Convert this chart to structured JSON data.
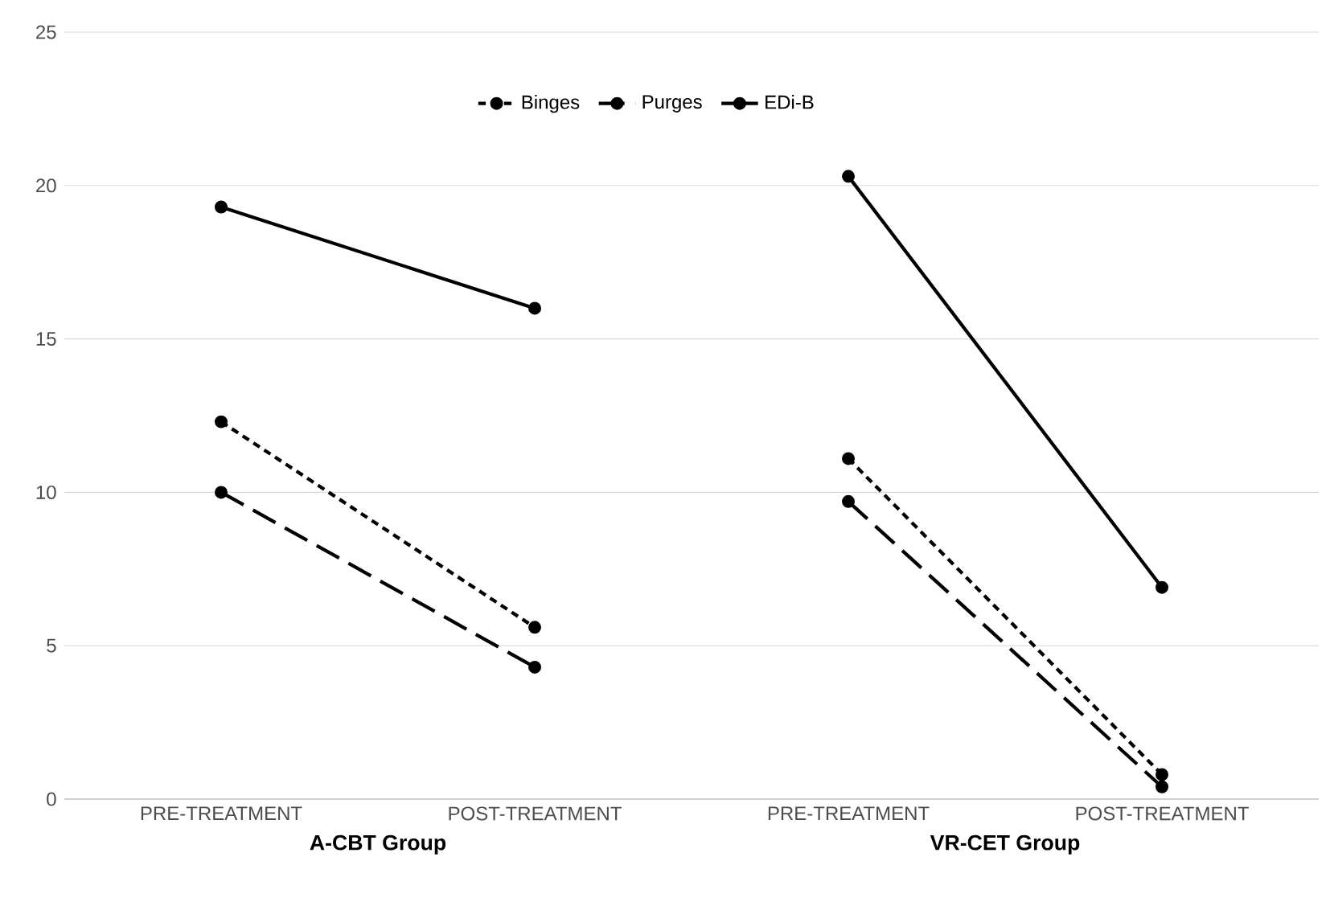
{
  "chart_data": [
    {
      "type": "line",
      "categories": [
        "PRE-TREATMENT",
        "POST-TREATMENT"
      ],
      "xlabel": "A-CBT Group",
      "ylim": [
        0,
        25
      ],
      "yticks": [
        0,
        5,
        10,
        15,
        20,
        25
      ],
      "grid": "y",
      "legend": "top right",
      "marker": "circle",
      "series": [
        {
          "name": "Binges",
          "color": "#000000",
          "line_style": "dotted",
          "values": [
            12.3,
            5.6
          ]
        },
        {
          "name": "Purges",
          "color": "#000000",
          "line_style": "dashed",
          "values": [
            10.0,
            4.3
          ]
        },
        {
          "name": "EDi-B",
          "color": "#000000",
          "line_style": "solid",
          "values": [
            19.3,
            16.0
          ]
        }
      ]
    },
    {
      "type": "line",
      "categories": [
        "PRE-TREATMENT",
        "POST-TREATMENT"
      ],
      "xlabel": "VR-CET Group",
      "ylim": [
        0,
        25
      ],
      "yticks": [
        0,
        5,
        10,
        15,
        20,
        25
      ],
      "grid": "y",
      "tick_labels": "x",
      "marker": "circle",
      "series": [
        {
          "color": "#000000",
          "line_style": "dotted",
          "values": [
            11.1,
            0.8
          ]
        },
        {
          "color": "#000000",
          "line_style": "dashed",
          "values": [
            9.7,
            0.4
          ]
        },
        {
          "color": "#000000",
          "line_style": "solid",
          "values": [
            20.3,
            6.9
          ]
        }
      ]
    }
  ]
}
